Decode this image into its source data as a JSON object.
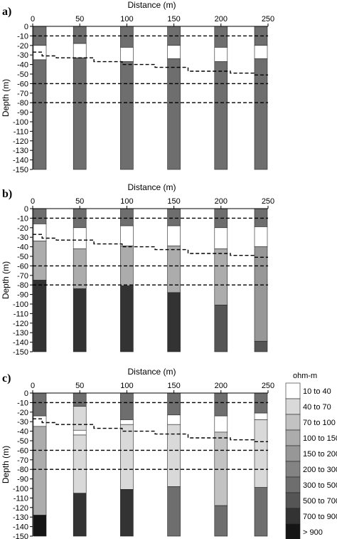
{
  "chart_data": [
    {
      "type": "bar",
      "panel_label": "a)",
      "xlabel": "Distance (m)",
      "ylabel": "Depth (m)",
      "x_ticks": [
        0,
        50,
        100,
        150,
        200,
        250
      ],
      "y_ticks": [
        0,
        -10,
        -20,
        -30,
        -40,
        -50,
        -60,
        -70,
        -80,
        -90,
        -100,
        -110,
        -120,
        -130,
        -140,
        -150
      ],
      "xlim": [
        0,
        250
      ],
      "ylim": [
        -150,
        0
      ],
      "dashed_lines": [
        {
          "points": [
            [
              0,
              -10
            ],
            [
              250,
              -10
            ]
          ]
        },
        {
          "points": [
            [
              0,
              -60
            ],
            [
              250,
              -60
            ]
          ]
        },
        {
          "points": [
            [
              0,
              -80
            ],
            [
              250,
              -80
            ]
          ]
        },
        {
          "points": [
            [
              0,
              -27
            ],
            [
              10,
              -27
            ],
            [
              10,
              -31
            ],
            [
              25,
              -31
            ],
            [
              25,
              -33
            ],
            [
              65,
              -33
            ],
            [
              65,
              -37
            ],
            [
              95,
              -37
            ],
            [
              95,
              -40
            ],
            [
              130,
              -40
            ],
            [
              130,
              -43
            ],
            [
              165,
              -43
            ],
            [
              165,
              -47
            ],
            [
              210,
              -47
            ],
            [
              210,
              -49
            ],
            [
              235,
              -49
            ],
            [
              235,
              -51
            ],
            [
              250,
              -51
            ]
          ]
        }
      ],
      "columns": [
        {
          "x": 0,
          "layers": [
            {
              "top": 0,
              "bottom": -20,
              "class": "300 to 500"
            },
            {
              "top": -20,
              "bottom": -35,
              "class": "10 to 40"
            },
            {
              "top": -35,
              "bottom": -150,
              "class": "300 to 500"
            }
          ]
        },
        {
          "x": 50,
          "layers": [
            {
              "top": 0,
              "bottom": -18,
              "class": "300 to 500"
            },
            {
              "top": -18,
              "bottom": -33,
              "class": "10 to 40"
            },
            {
              "top": -33,
              "bottom": -150,
              "class": "300 to 500"
            }
          ]
        },
        {
          "x": 100,
          "layers": [
            {
              "top": 0,
              "bottom": -22,
              "class": "300 to 500"
            },
            {
              "top": -22,
              "bottom": -37,
              "class": "10 to 40"
            },
            {
              "top": -37,
              "bottom": -150,
              "class": "300 to 500"
            }
          ]
        },
        {
          "x": 150,
          "layers": [
            {
              "top": 0,
              "bottom": -20,
              "class": "300 to 500"
            },
            {
              "top": -20,
              "bottom": -34,
              "class": "10 to 40"
            },
            {
              "top": -34,
              "bottom": -150,
              "class": "300 to 500"
            }
          ]
        },
        {
          "x": 200,
          "layers": [
            {
              "top": 0,
              "bottom": -22,
              "class": "300 to 500"
            },
            {
              "top": -22,
              "bottom": -37,
              "class": "10 to 40"
            },
            {
              "top": -37,
              "bottom": -150,
              "class": "300 to 500"
            }
          ]
        },
        {
          "x": 250,
          "layers": [
            {
              "top": 0,
              "bottom": -20,
              "class": "300 to 500"
            },
            {
              "top": -20,
              "bottom": -34,
              "class": "10 to 40"
            },
            {
              "top": -34,
              "bottom": -150,
              "class": "300 to 500"
            }
          ]
        }
      ]
    },
    {
      "type": "bar",
      "panel_label": "b)",
      "xlabel": "Distance (m)",
      "ylabel": "Depth (m)",
      "x_ticks": [
        0,
        50,
        100,
        150,
        200,
        250
      ],
      "y_ticks": [
        0,
        -10,
        -20,
        -30,
        -40,
        -50,
        -60,
        -70,
        -80,
        -90,
        -100,
        -110,
        -120,
        -130,
        -140,
        -150
      ],
      "xlim": [
        0,
        250
      ],
      "ylim": [
        -150,
        0
      ],
      "dashed_lines": [
        {
          "points": [
            [
              0,
              -10
            ],
            [
              250,
              -10
            ]
          ]
        },
        {
          "points": [
            [
              0,
              -60
            ],
            [
              250,
              -60
            ]
          ]
        },
        {
          "points": [
            [
              0,
              -80
            ],
            [
              250,
              -80
            ]
          ]
        },
        {
          "points": [
            [
              0,
              -27
            ],
            [
              10,
              -27
            ],
            [
              10,
              -31
            ],
            [
              25,
              -31
            ],
            [
              25,
              -33
            ],
            [
              65,
              -33
            ],
            [
              65,
              -37
            ],
            [
              95,
              -37
            ],
            [
              95,
              -40
            ],
            [
              130,
              -40
            ],
            [
              130,
              -43
            ],
            [
              165,
              -43
            ],
            [
              165,
              -47
            ],
            [
              210,
              -47
            ],
            [
              210,
              -49
            ],
            [
              235,
              -49
            ],
            [
              235,
              -51
            ],
            [
              250,
              -51
            ]
          ]
        }
      ],
      "columns": [
        {
          "x": 0,
          "layers": [
            {
              "top": 0,
              "bottom": -16,
              "class": "300 to 500"
            },
            {
              "top": -16,
              "bottom": -34,
              "class": "10 to 40"
            },
            {
              "top": -34,
              "bottom": -75,
              "class": "100 to 150"
            },
            {
              "top": -75,
              "bottom": -150,
              "class": "700 to 900"
            }
          ]
        },
        {
          "x": 50,
          "layers": [
            {
              "top": 0,
              "bottom": -20,
              "class": "300 to 500"
            },
            {
              "top": -20,
              "bottom": -42,
              "class": "10 to 40"
            },
            {
              "top": -42,
              "bottom": -84,
              "class": "100 to 150"
            },
            {
              "top": -84,
              "bottom": -150,
              "class": "700 to 900"
            }
          ]
        },
        {
          "x": 100,
          "layers": [
            {
              "top": 0,
              "bottom": -18,
              "class": "300 to 500"
            },
            {
              "top": -18,
              "bottom": -39,
              "class": "10 to 40"
            },
            {
              "top": -39,
              "bottom": -81,
              "class": "100 to 150"
            },
            {
              "top": -81,
              "bottom": -150,
              "class": "700 to 900"
            }
          ]
        },
        {
          "x": 150,
          "layers": [
            {
              "top": 0,
              "bottom": -18,
              "class": "300 to 500"
            },
            {
              "top": -18,
              "bottom": -39,
              "class": "10 to 40"
            },
            {
              "top": -39,
              "bottom": -88,
              "class": "100 to 150"
            },
            {
              "top": -88,
              "bottom": -150,
              "class": "700 to 900"
            }
          ]
        },
        {
          "x": 200,
          "layers": [
            {
              "top": 0,
              "bottom": -20,
              "class": "300 to 500"
            },
            {
              "top": -20,
              "bottom": -42,
              "class": "10 to 40"
            },
            {
              "top": -42,
              "bottom": -101,
              "class": "100 to 150"
            },
            {
              "top": -101,
              "bottom": -150,
              "class": "500 to 700"
            }
          ]
        },
        {
          "x": 250,
          "layers": [
            {
              "top": 0,
              "bottom": -19,
              "class": "300 to 500"
            },
            {
              "top": -19,
              "bottom": -40,
              "class": "10 to 40"
            },
            {
              "top": -40,
              "bottom": -139,
              "class": "150 to 200"
            },
            {
              "top": -139,
              "bottom": -150,
              "class": "500 to 700"
            }
          ]
        }
      ]
    },
    {
      "type": "bar",
      "panel_label": "c)",
      "xlabel": "Distance (m)",
      "ylabel": "Depth (m)",
      "x_ticks": [
        0,
        50,
        100,
        150,
        200,
        250
      ],
      "y_ticks": [
        0,
        -10,
        -20,
        -30,
        -40,
        -50,
        -60,
        -70,
        -80,
        -90,
        -100,
        -110,
        -120,
        -130,
        -140,
        -150
      ],
      "xlim": [
        0,
        250
      ],
      "ylim": [
        -150,
        0
      ],
      "dashed_lines": [
        {
          "points": [
            [
              0,
              -10
            ],
            [
              250,
              -10
            ]
          ]
        },
        {
          "points": [
            [
              0,
              -60
            ],
            [
              250,
              -60
            ]
          ]
        },
        {
          "points": [
            [
              0,
              -80
            ],
            [
              250,
              -80
            ]
          ]
        },
        {
          "points": [
            [
              0,
              -27
            ],
            [
              10,
              -27
            ],
            [
              10,
              -31
            ],
            [
              25,
              -31
            ],
            [
              25,
              -33
            ],
            [
              65,
              -33
            ],
            [
              65,
              -37
            ],
            [
              95,
              -37
            ],
            [
              95,
              -40
            ],
            [
              130,
              -40
            ],
            [
              130,
              -43
            ],
            [
              165,
              -43
            ],
            [
              165,
              -47
            ],
            [
              210,
              -47
            ],
            [
              210,
              -49
            ],
            [
              235,
              -49
            ],
            [
              235,
              -51
            ],
            [
              250,
              -51
            ]
          ]
        }
      ],
      "columns": [
        {
          "x": 0,
          "layers": [
            {
              "top": 0,
              "bottom": -24,
              "class": "300 to 500"
            },
            {
              "top": -24,
              "bottom": -35,
              "class": "10 to 40"
            },
            {
              "top": -35,
              "bottom": -128,
              "class": "100 to 150"
            },
            {
              "top": -128,
              "bottom": -150,
              "class": "> 900"
            }
          ]
        },
        {
          "x": 50,
          "layers": [
            {
              "top": 0,
              "bottom": -14,
              "class": "300 to 500"
            },
            {
              "top": -14,
              "bottom": -39,
              "class": "40 to 70"
            },
            {
              "top": -39,
              "bottom": -44,
              "class": "10 to 40"
            },
            {
              "top": -44,
              "bottom": -105,
              "class": "40 to 70"
            },
            {
              "top": -105,
              "bottom": -150,
              "class": "700 to 900"
            }
          ]
        },
        {
          "x": 100,
          "layers": [
            {
              "top": 0,
              "bottom": -28,
              "class": "300 to 500"
            },
            {
              "top": -28,
              "bottom": -33,
              "class": "10 to 40"
            },
            {
              "top": -33,
              "bottom": -101,
              "class": "40 to 70"
            },
            {
              "top": -101,
              "bottom": -150,
              "class": "700 to 900"
            }
          ]
        },
        {
          "x": 150,
          "layers": [
            {
              "top": 0,
              "bottom": -23,
              "class": "300 to 500"
            },
            {
              "top": -23,
              "bottom": -33,
              "class": "10 to 40"
            },
            {
              "top": -33,
              "bottom": -98,
              "class": "40 to 70"
            },
            {
              "top": -98,
              "bottom": -150,
              "class": "300 to 500"
            }
          ]
        },
        {
          "x": 200,
          "layers": [
            {
              "top": 0,
              "bottom": -24,
              "class": "300 to 500"
            },
            {
              "top": -24,
              "bottom": -41,
              "class": "10 to 40"
            },
            {
              "top": -41,
              "bottom": -118,
              "class": "70 to 100"
            },
            {
              "top": -118,
              "bottom": -150,
              "class": "300 to 500"
            }
          ]
        },
        {
          "x": 250,
          "layers": [
            {
              "top": 0,
              "bottom": -21,
              "class": "300 to 500"
            },
            {
              "top": -21,
              "bottom": -28,
              "class": "10 to 40"
            },
            {
              "top": -28,
              "bottom": -99,
              "class": "40 to 70"
            },
            {
              "top": -99,
              "bottom": -150,
              "class": "300 to 500"
            }
          ]
        }
      ]
    }
  ],
  "legend": {
    "title": "ohm-m",
    "placement": "right of panel c",
    "items": [
      {
        "label": "10 to 40",
        "color": "#ffffff"
      },
      {
        "label": "40 to 70",
        "color": "#d9d9d9"
      },
      {
        "label": "70 to 100",
        "color": "#c2c2c2"
      },
      {
        "label": "100 to 150",
        "color": "#acacac"
      },
      {
        "label": "150 to 200",
        "color": "#979797"
      },
      {
        "label": "200 to 300",
        "color": "#838383"
      },
      {
        "label": "300 to 500",
        "color": "#6e6e6e"
      },
      {
        "label": "500 to 700",
        "color": "#555555"
      },
      {
        "label": "700 to 900",
        "color": "#333333"
      },
      {
        "label": "> 900",
        "color": "#151515"
      }
    ]
  }
}
